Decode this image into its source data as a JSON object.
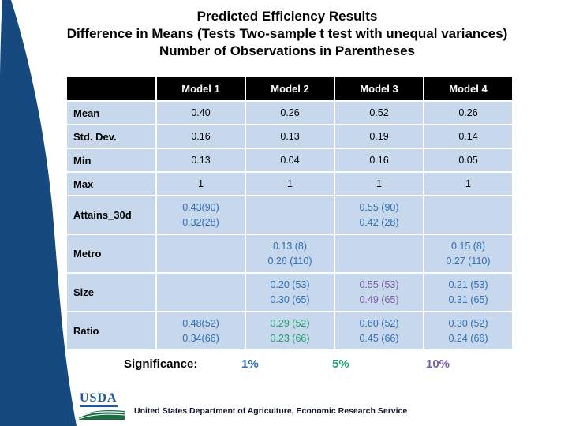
{
  "slide": {
    "title_lines": [
      "Predicted Efficiency Results",
      "Difference in Means (Tests Two-sample t test with unequal variances)",
      "Number of Observations in Parentheses"
    ],
    "table": {
      "columns": [
        "",
        "Model 1",
        "Model 2",
        "Model 3",
        "Model 4"
      ],
      "rows": [
        {
          "label": "Mean",
          "cells": [
            {
              "lines": [
                "0.40"
              ],
              "color": "black"
            },
            {
              "lines": [
                "0.26"
              ],
              "color": "black"
            },
            {
              "lines": [
                "0.52"
              ],
              "color": "black"
            },
            {
              "lines": [
                "0.26"
              ],
              "color": "black"
            }
          ]
        },
        {
          "label": "Std. Dev.",
          "cells": [
            {
              "lines": [
                "0.16"
              ],
              "color": "black"
            },
            {
              "lines": [
                "0.13"
              ],
              "color": "black"
            },
            {
              "lines": [
                "0.19"
              ],
              "color": "black"
            },
            {
              "lines": [
                "0.14"
              ],
              "color": "black"
            }
          ]
        },
        {
          "label": "Min",
          "cells": [
            {
              "lines": [
                "0.13"
              ],
              "color": "black"
            },
            {
              "lines": [
                "0.04"
              ],
              "color": "black"
            },
            {
              "lines": [
                "0.16"
              ],
              "color": "black"
            },
            {
              "lines": [
                "0.05"
              ],
              "color": "black"
            }
          ]
        },
        {
          "label": "Max",
          "cells": [
            {
              "lines": [
                "1"
              ],
              "color": "black"
            },
            {
              "lines": [
                "1"
              ],
              "color": "black"
            },
            {
              "lines": [
                "1"
              ],
              "color": "black"
            },
            {
              "lines": [
                "1"
              ],
              "color": "black"
            }
          ]
        },
        {
          "label": "Attains_30d",
          "cells": [
            {
              "lines": [
                "0.43(90)",
                "0.32(28)"
              ],
              "color": "blue"
            },
            {
              "lines": [],
              "color": "black"
            },
            {
              "lines": [
                "0.55 (90)",
                "0.42 (28)"
              ],
              "color": "blue"
            },
            {
              "lines": [],
              "color": "black"
            }
          ]
        },
        {
          "label": "Metro",
          "cells": [
            {
              "lines": [],
              "color": "black"
            },
            {
              "lines": [
                "0.13 (8)",
                "0.26 (110)"
              ],
              "color": "blue"
            },
            {
              "lines": [],
              "color": "black"
            },
            {
              "lines": [
                "0.15 (8)",
                "0.27 (110)"
              ],
              "color": "blue"
            }
          ]
        },
        {
          "label": "Size",
          "cells": [
            {
              "lines": [],
              "color": "black"
            },
            {
              "lines": [
                "0.20 (53)",
                "0.30 (65)"
              ],
              "color": "blue"
            },
            {
              "lines": [
                "0.55 (53)",
                "0.49 (65)"
              ],
              "color": "purple"
            },
            {
              "lines": [
                "0.21 (53)",
                "0.31 (65)"
              ],
              "color": "blue"
            }
          ]
        },
        {
          "label": "Ratio",
          "cells": [
            {
              "lines": [
                "0.48(52)",
                "0.34(66)"
              ],
              "color": "blue"
            },
            {
              "lines": [
                "0.29 (52)",
                "0.23 (66)"
              ],
              "color": "green"
            },
            {
              "lines": [
                "0.60 (52)",
                "0.45 (66)"
              ],
              "color": "blue"
            },
            {
              "lines": [
                "0.30 (52)",
                "0.24 (66)"
              ],
              "color": "blue"
            }
          ]
        }
      ]
    },
    "significance": {
      "label": "Significance:",
      "levels": [
        {
          "text": "1%",
          "color": "blue"
        },
        {
          "text": "5%",
          "color": "green"
        },
        {
          "text": "10%",
          "color": "purple"
        }
      ]
    },
    "footer": {
      "logo": "USDA",
      "org": "United States Department of Agriculture, Economic Research Service"
    }
  },
  "colors": {
    "accent_navy": "#164a7e",
    "header_bg": "#000000",
    "cell_bg": "#c7d8ed",
    "sig_blue": "#2f6eb5",
    "sig_green": "#1ea06c",
    "sig_purple": "#7c5ea6",
    "logo_blue": "#1f5799",
    "logo_green": "#1e6b45"
  }
}
